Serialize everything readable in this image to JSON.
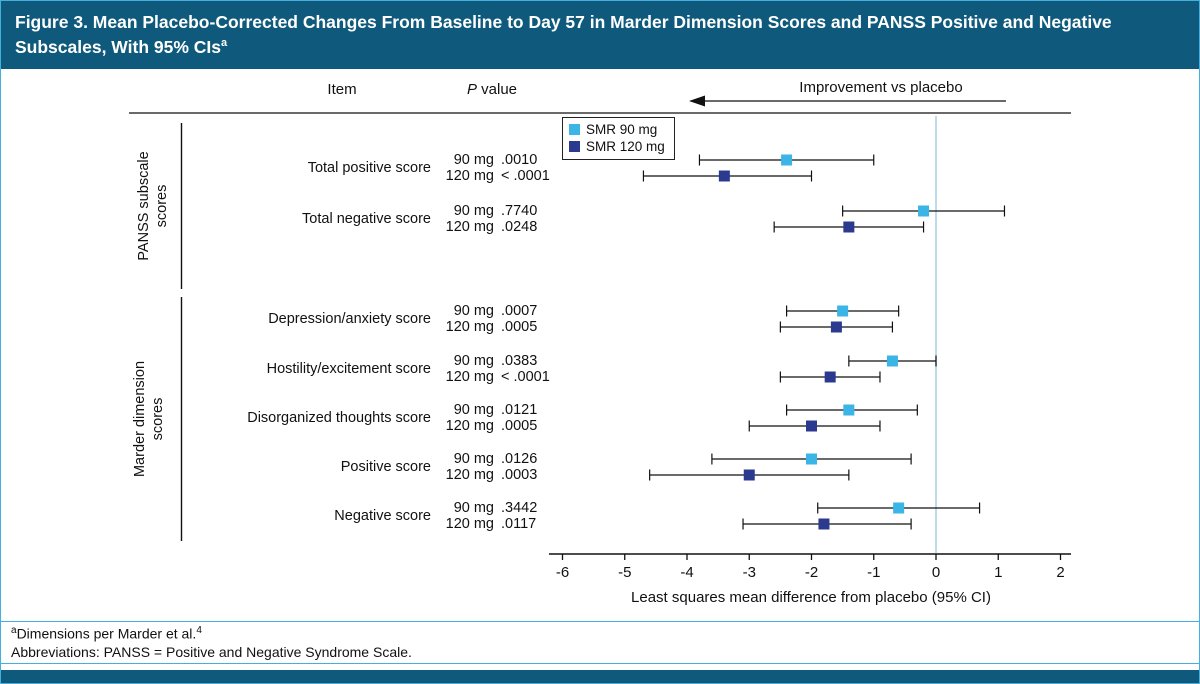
{
  "header": {
    "title": "Figure 3. Mean Placebo-Corrected Changes From Baseline to Day 57 in Marder Dimension Scores and PANSS Positive and Negative Subscales, With 95% CIs",
    "title_sup": "a"
  },
  "columns": {
    "item": "Item",
    "p_italic": "P",
    "p_rest": " value",
    "improvement": "Improvement vs placebo"
  },
  "legend": [
    {
      "label": "SMR 90 mg",
      "color": "#3ab5e5"
    },
    {
      "label": "SMR 120 mg",
      "color": "#2b3a8f"
    }
  ],
  "groups": [
    {
      "label": "PANSS subscale scores"
    },
    {
      "label": "Marder dimension scores"
    }
  ],
  "colors": {
    "banner": "#0f5a7c",
    "border": "#45b0dd",
    "smr90": "#3ab5e5",
    "smr120": "#2b3a8f",
    "reference_line": "#a9cfe6",
    "axis": "#111111"
  },
  "chart_data": {
    "type": "forest",
    "xlabel": "Least squares mean difference from placebo (95% CI)",
    "xlim": [
      -6,
      2
    ],
    "xticks": [
      -6,
      -5,
      -4,
      -3,
      -2,
      -1,
      0,
      1,
      2
    ],
    "reference_line_x": 0,
    "legend_position": "top-left-inside",
    "grid": false,
    "series_names": [
      "SMR 90 mg",
      "SMR 120 mg"
    ],
    "rows": [
      {
        "group": "PANSS subscale scores",
        "item": "Total positive score",
        "entries": [
          {
            "series": "SMR 90 mg",
            "dose": "90 mg",
            "p_value": ".0010",
            "estimate": -2.4,
            "ci_low": -3.8,
            "ci_high": -1.0
          },
          {
            "series": "SMR 120 mg",
            "dose": "120 mg",
            "p_value": "< .0001",
            "estimate": -3.4,
            "ci_low": -4.7,
            "ci_high": -2.0
          }
        ]
      },
      {
        "group": "PANSS subscale scores",
        "item": "Total negative score",
        "entries": [
          {
            "series": "SMR 90 mg",
            "dose": "90 mg",
            "p_value": ".7740",
            "estimate": -0.2,
            "ci_low": -1.5,
            "ci_high": 1.1
          },
          {
            "series": "SMR 120 mg",
            "dose": "120 mg",
            "p_value": ".0248",
            "estimate": -1.4,
            "ci_low": -2.6,
            "ci_high": -0.2
          }
        ]
      },
      {
        "group": "Marder dimension scores",
        "item": "Depression/anxiety score",
        "entries": [
          {
            "series": "SMR 90 mg",
            "dose": "90 mg",
            "p_value": ".0007",
            "estimate": -1.5,
            "ci_low": -2.4,
            "ci_high": -0.6
          },
          {
            "series": "SMR 120 mg",
            "dose": "120 mg",
            "p_value": ".0005",
            "estimate": -1.6,
            "ci_low": -2.5,
            "ci_high": -0.7
          }
        ]
      },
      {
        "group": "Marder dimension scores",
        "item": "Hostility/excitement score",
        "entries": [
          {
            "series": "SMR 90 mg",
            "dose": "90 mg",
            "p_value": ".0383",
            "estimate": -0.7,
            "ci_low": -1.4,
            "ci_high": 0.0
          },
          {
            "series": "SMR 120 mg",
            "dose": "120 mg",
            "p_value": "< .0001",
            "estimate": -1.7,
            "ci_low": -2.5,
            "ci_high": -0.9
          }
        ]
      },
      {
        "group": "Marder dimension scores",
        "item": "Disorganized thoughts score",
        "entries": [
          {
            "series": "SMR 90 mg",
            "dose": "90 mg",
            "p_value": ".0121",
            "estimate": -1.4,
            "ci_low": -2.4,
            "ci_high": -0.3
          },
          {
            "series": "SMR 120 mg",
            "dose": "120 mg",
            "p_value": ".0005",
            "estimate": -2.0,
            "ci_low": -3.0,
            "ci_high": -0.9
          }
        ]
      },
      {
        "group": "Marder dimension scores",
        "item": "Positive score",
        "entries": [
          {
            "series": "SMR 90 mg",
            "dose": "90 mg",
            "p_value": ".0126",
            "estimate": -2.0,
            "ci_low": -3.6,
            "ci_high": -0.4
          },
          {
            "series": "SMR 120 mg",
            "dose": "120 mg",
            "p_value": ".0003",
            "estimate": -3.0,
            "ci_low": -4.6,
            "ci_high": -1.4
          }
        ]
      },
      {
        "group": "Marder dimension scores",
        "item": "Negative score",
        "entries": [
          {
            "series": "SMR 90 mg",
            "dose": "90 mg",
            "p_value": ".3442",
            "estimate": -0.6,
            "ci_low": -1.9,
            "ci_high": 0.7
          },
          {
            "series": "SMR 120 mg",
            "dose": "120 mg",
            "p_value": ".0117",
            "estimate": -1.8,
            "ci_low": -3.1,
            "ci_high": -0.4
          }
        ]
      }
    ]
  },
  "footnotes": {
    "a_sup": "a",
    "a_text": "Dimensions per Marder et al.",
    "a_ref": "4",
    "abbreviations": "Abbreviations: PANSS = Positive and Negative Syndrome Scale."
  }
}
